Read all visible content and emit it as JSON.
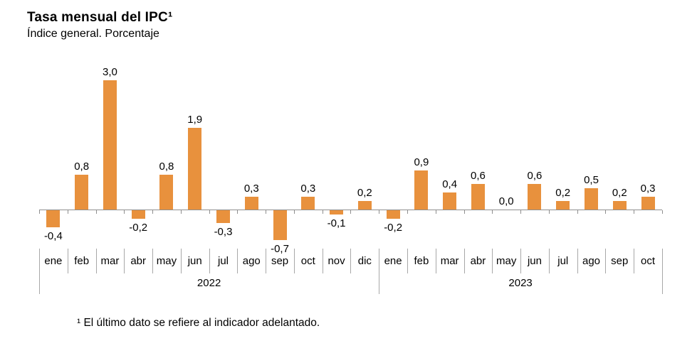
{
  "header": {
    "title": "Tasa mensual del IPC¹",
    "subtitle": "Índice general. Porcentaje"
  },
  "footnote": "¹ El último dato se refiere al indicador adelantado.",
  "chart_data": {
    "type": "bar",
    "title": "Tasa mensual del IPC¹",
    "subtitle": "Índice general. Porcentaje",
    "ylabel": "Porcentaje",
    "ylim": [
      -1.0,
      3.3
    ],
    "grid": false,
    "legend": false,
    "bar_color": "#E8913D",
    "axis_color": "#8F8F8F",
    "label_color": "#000000",
    "decimal_separator": ",",
    "groups": [
      {
        "year": "2022",
        "categories": [
          "ene",
          "feb",
          "mar",
          "abr",
          "may",
          "jun",
          "jul",
          "ago",
          "sep",
          "oct",
          "nov",
          "dic"
        ],
        "values": [
          -0.4,
          0.8,
          3.0,
          -0.2,
          0.8,
          1.9,
          -0.3,
          0.3,
          -0.7,
          0.3,
          -0.1,
          0.2
        ],
        "labels": [
          "-0,4",
          "0,8",
          "3,0",
          "-0,2",
          "0,8",
          "1,9",
          "-0,3",
          "0,3",
          "-0,7",
          "0,3",
          "-0,1",
          "0,2"
        ]
      },
      {
        "year": "2023",
        "categories": [
          "ene",
          "feb",
          "mar",
          "abr",
          "may",
          "jun",
          "jul",
          "ago",
          "sep",
          "oct"
        ],
        "values": [
          -0.2,
          0.9,
          0.4,
          0.6,
          0.0,
          0.6,
          0.2,
          0.5,
          0.2,
          0.3
        ],
        "labels": [
          "-0,2",
          "0,9",
          "0,4",
          "0,6",
          "0,0",
          "0,6",
          "0,2",
          "0,5",
          "0,2",
          "0,3"
        ]
      }
    ]
  }
}
